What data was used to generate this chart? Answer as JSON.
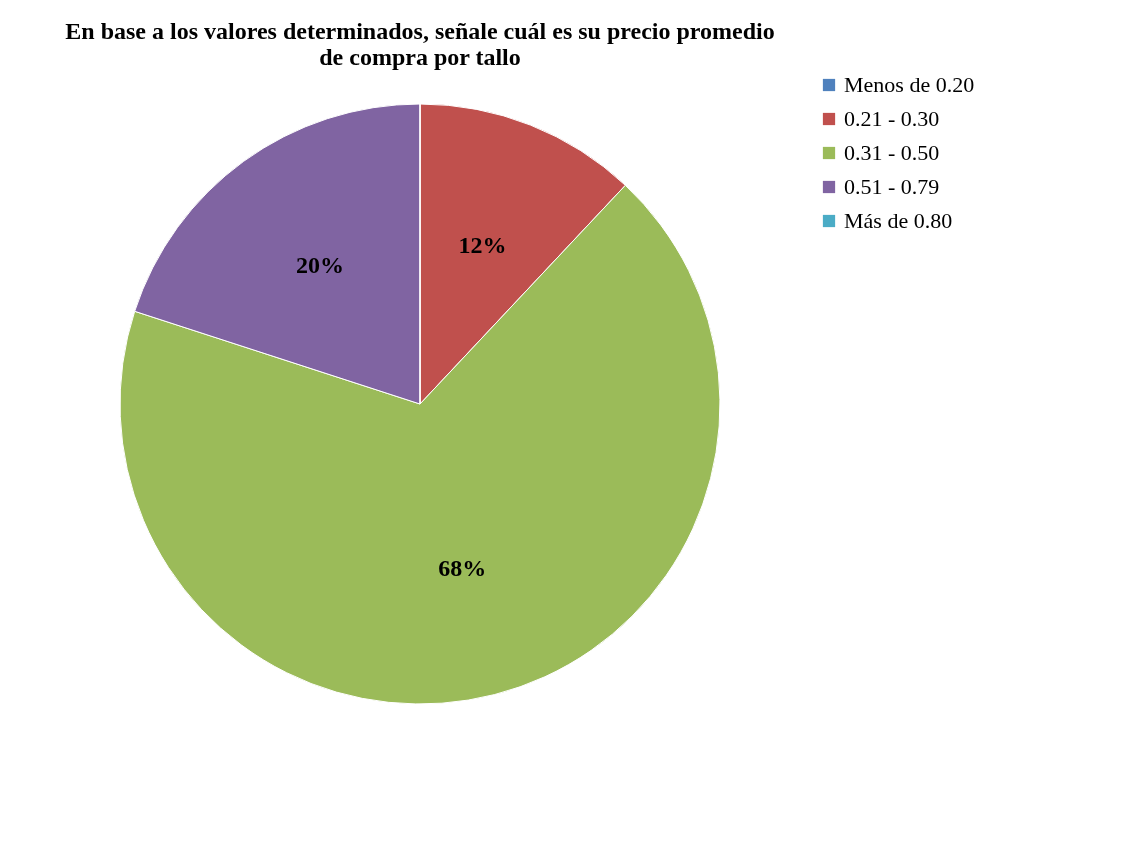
{
  "chart_data": {
    "type": "pie",
    "title": [
      "En base a los valores determinados, señale cuál es su precio promedio",
      "de compra por tallo"
    ],
    "categories": [
      "Menos de 0.20",
      "0.21 - 0.30",
      "0.31 - 0.50",
      "0.51 - 0.79",
      "Más de 0.80"
    ],
    "values": [
      0,
      12,
      68,
      20,
      0
    ],
    "colors": [
      "#4f81bd",
      "#c0504d",
      "#9bbb59",
      "#8064a2",
      "#4bacc6"
    ],
    "value_labels": [
      null,
      "12%",
      "68%",
      "20%",
      null
    ],
    "legend": "right"
  }
}
